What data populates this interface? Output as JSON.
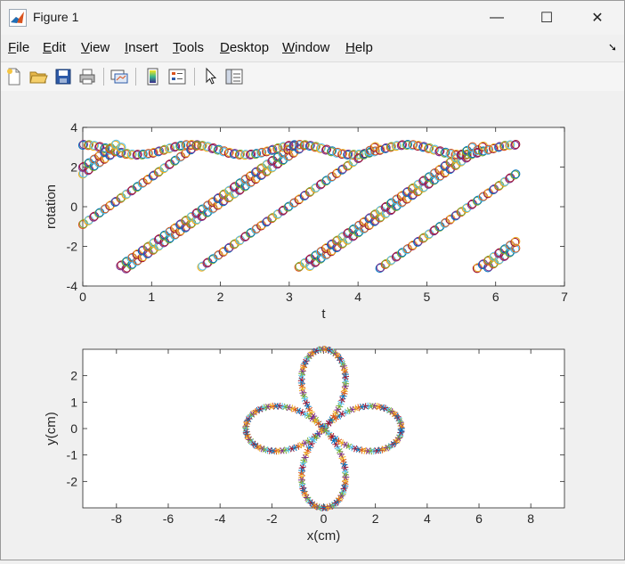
{
  "window": {
    "title": "Figure 1",
    "minimize": "—",
    "maximize": "☐",
    "close": "✕"
  },
  "menu": [
    {
      "label": "File",
      "ul": "F",
      "rest": "ile"
    },
    {
      "label": "Edit",
      "ul": "E",
      "rest": "dit"
    },
    {
      "label": "View",
      "ul": "V",
      "rest": "iew"
    },
    {
      "label": "Insert",
      "ul": "I",
      "rest": "nsert"
    },
    {
      "label": "Tools",
      "ul": "T",
      "rest": "ools"
    },
    {
      "label": "Desktop",
      "ul": "D",
      "rest": "esktop"
    },
    {
      "label": "Window",
      "ul": "W",
      "rest": "indow"
    },
    {
      "label": "Help",
      "ul": "H",
      "rest": "elp"
    }
  ],
  "toolbar_icons": [
    "new-figure-icon",
    "open-file-icon",
    "save-icon",
    "print-icon",
    "link-plot-icon",
    "colorbar-icon",
    "legend-icon",
    "edit-plot-cursor-icon",
    "property-inspector-icon"
  ],
  "chart_data": [
    {
      "type": "scatter",
      "title": "",
      "xlabel": "t",
      "ylabel": "rotation",
      "xlim": [
        0,
        7
      ],
      "ylim": [
        -4,
        4
      ],
      "xticks": [
        0,
        1,
        2,
        3,
        4,
        5,
        6,
        7
      ],
      "yticks": [
        -4,
        -2,
        0,
        2,
        4
      ],
      "grid": false,
      "marker": "o",
      "t_range": [
        0,
        6.28
      ],
      "description_series": "rotation vs t for multiple overlapping colored circle series"
    },
    {
      "type": "scatter",
      "title": "",
      "xlabel": "x(cm)",
      "ylabel": "y(cm)",
      "xlim": [
        -9.3,
        9.3
      ],
      "ylim": [
        -3,
        3
      ],
      "xticks": [
        -8,
        -6,
        -4,
        -2,
        0,
        2,
        4,
        6,
        8
      ],
      "yticks": [
        -2,
        -1,
        0,
        1,
        2
      ],
      "grid": false,
      "marker": "*",
      "curve": "four-petal rose r = 3*|cos(2θ)|^0.9"
    }
  ],
  "palette": [
    "#0072BD",
    "#D95319",
    "#EDB120",
    "#7E2F8E",
    "#77AC30",
    "#4DBEEE",
    "#A2142F"
  ]
}
